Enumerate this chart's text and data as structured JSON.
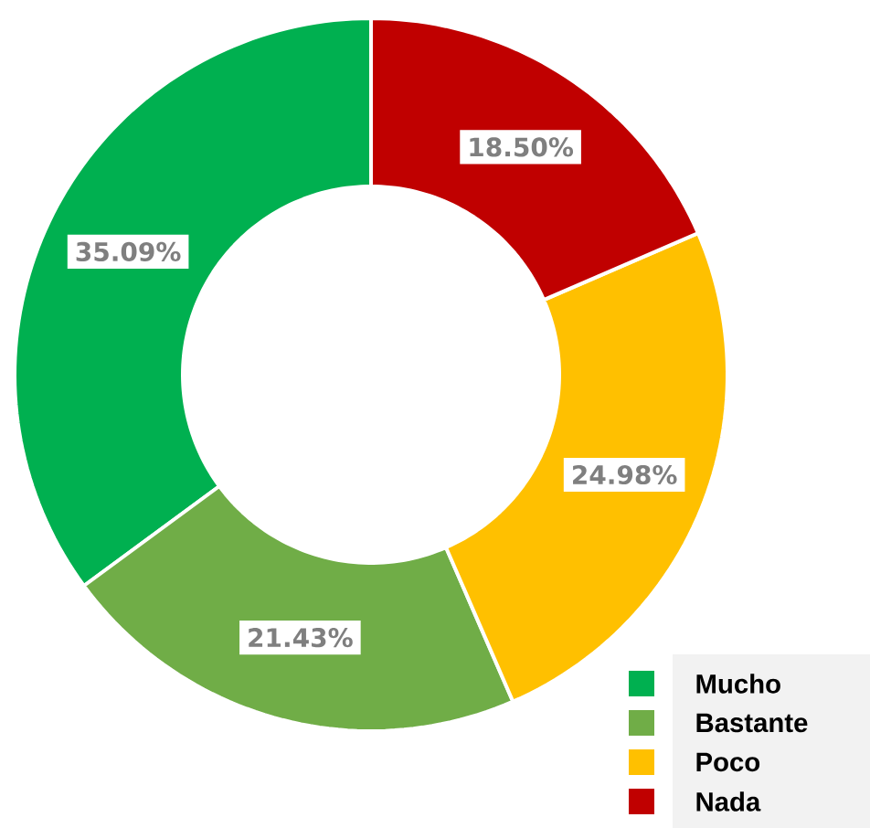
{
  "chart_data": {
    "type": "donut",
    "categories": [
      "Mucho",
      "Bastante",
      "Poco",
      "Nada"
    ],
    "values": [
      35.09,
      21.43,
      24.98,
      18.5
    ],
    "value_labels": [
      "35.09%",
      "21.43%",
      "24.98%",
      "18.50%"
    ],
    "colors": [
      "#00b050",
      "#70ad47",
      "#ffc000",
      "#c00000"
    ],
    "legend": "bottom right"
  }
}
